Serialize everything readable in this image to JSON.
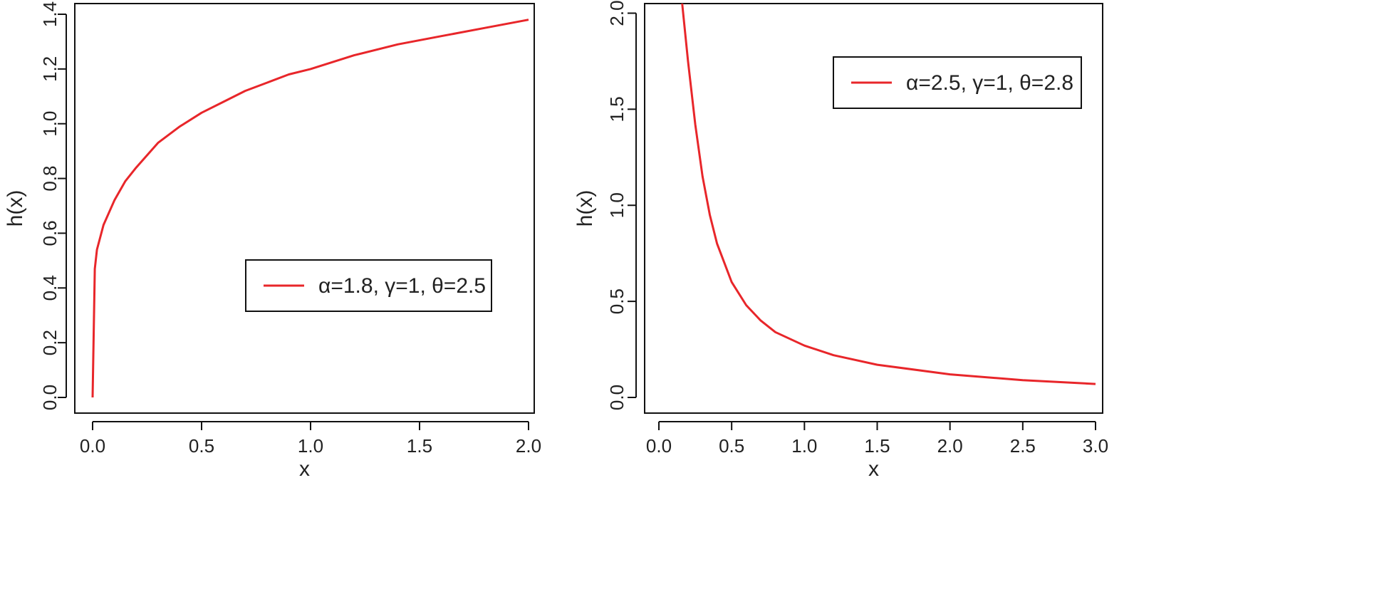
{
  "chart_data": [
    {
      "type": "line",
      "xlabel": "x",
      "ylabel": "h(x)",
      "xlim": [
        0,
        2
      ],
      "ylim": [
        0,
        1.4
      ],
      "x_ticks": [
        "0.0",
        "0.5",
        "1.0",
        "1.5",
        "2.0"
      ],
      "y_ticks": [
        "0.0",
        "0.2",
        "0.4",
        "0.6",
        "0.8",
        "1.0",
        "1.2",
        "1.4"
      ],
      "legend_position": "middle-right",
      "series": [
        {
          "name": "α=1.8, γ=1, θ=2.5",
          "color": "#e8262a",
          "x": [
            0,
            0.01,
            0.02,
            0.05,
            0.1,
            0.15,
            0.2,
            0.3,
            0.4,
            0.5,
            0.6,
            0.7,
            0.8,
            0.9,
            1.0,
            1.2,
            1.4,
            1.6,
            1.8,
            2.0
          ],
          "y": [
            0,
            0.47,
            0.54,
            0.63,
            0.72,
            0.79,
            0.84,
            0.93,
            0.99,
            1.04,
            1.08,
            1.12,
            1.15,
            1.18,
            1.2,
            1.25,
            1.29,
            1.32,
            1.35,
            1.38
          ]
        }
      ]
    },
    {
      "type": "line",
      "xlabel": "x",
      "ylabel": "h(x)",
      "xlim": [
        0,
        3
      ],
      "ylim": [
        0,
        2.05
      ],
      "x_ticks": [
        "0.0",
        "0.5",
        "1.0",
        "1.5",
        "2.0",
        "2.5",
        "3.0"
      ],
      "y_ticks": [
        "0.0",
        "0.5",
        "1.0",
        "1.5",
        "2.0"
      ],
      "legend_position": "top-right",
      "series": [
        {
          "name": "α=2.5, γ=1, θ=2.8",
          "color": "#e8262a",
          "x": [
            0.16,
            0.2,
            0.25,
            0.3,
            0.35,
            0.4,
            0.5,
            0.6,
            0.7,
            0.8,
            1.0,
            1.2,
            1.5,
            2.0,
            2.5,
            3.0
          ],
          "y": [
            2.05,
            1.75,
            1.42,
            1.15,
            0.95,
            0.8,
            0.6,
            0.48,
            0.4,
            0.34,
            0.27,
            0.22,
            0.17,
            0.12,
            0.09,
            0.07
          ]
        }
      ]
    }
  ]
}
